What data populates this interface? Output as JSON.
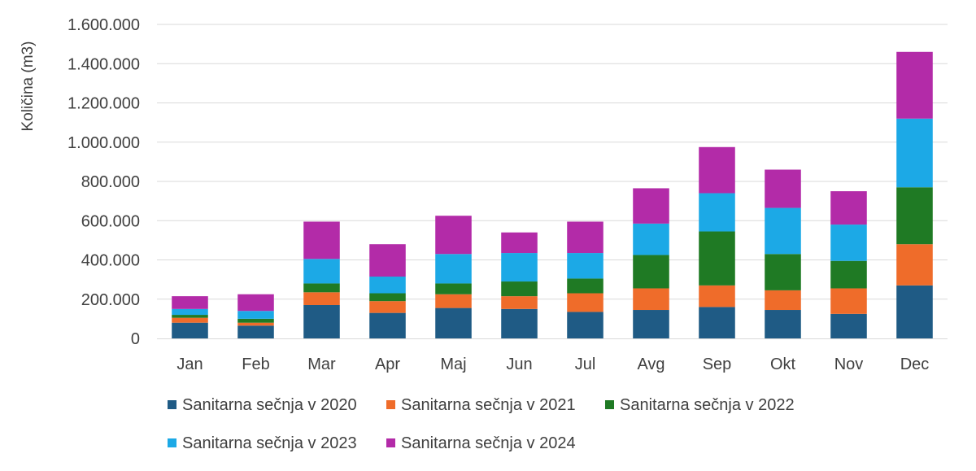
{
  "chart_data": {
    "type": "bar",
    "stacked": true,
    "title": "",
    "xlabel": "",
    "ylabel": "Količina (m3)",
    "ylim": [
      0,
      1600000
    ],
    "y_ticks": [
      0,
      200000,
      400000,
      600000,
      800000,
      1000000,
      1200000,
      1400000,
      1600000
    ],
    "y_tick_labels": [
      "0",
      "200.000",
      "400.000",
      "600.000",
      "800.000",
      "1.000.000",
      "1.200.000",
      "1.400.000",
      "1.600.000"
    ],
    "grid": true,
    "legend_position": "bottom",
    "categories": [
      "Jan",
      "Feb",
      "Mar",
      "Apr",
      "Maj",
      "Jun",
      "Jul",
      "Avg",
      "Sep",
      "Okt",
      "Nov",
      "Dec"
    ],
    "series": [
      {
        "name": "Sanitarna sečnja v 2020",
        "color": "#1f5b85",
        "values": [
          80000,
          65000,
          170000,
          130000,
          155000,
          150000,
          135000,
          145000,
          160000,
          145000,
          125000,
          270000
        ]
      },
      {
        "name": "Sanitarna sečnja v 2021",
        "color": "#ef6c2a",
        "values": [
          25000,
          15000,
          65000,
          60000,
          70000,
          65000,
          95000,
          110000,
          110000,
          100000,
          130000,
          210000
        ]
      },
      {
        "name": "Sanitarna sečnja v 2022",
        "color": "#1f7a24",
        "values": [
          15000,
          20000,
          45000,
          40000,
          55000,
          75000,
          75000,
          170000,
          275000,
          185000,
          140000,
          290000
        ]
      },
      {
        "name": "Sanitarna sečnja v 2023",
        "color": "#1ca9e6",
        "values": [
          30000,
          40000,
          125000,
          85000,
          150000,
          145000,
          130000,
          160000,
          195000,
          235000,
          185000,
          350000
        ]
      },
      {
        "name": "Sanitarna sečnja v 2024",
        "color": "#b32ba8",
        "values": [
          65000,
          85000,
          190000,
          165000,
          195000,
          105000,
          160000,
          180000,
          235000,
          195000,
          170000,
          340000
        ]
      }
    ]
  }
}
